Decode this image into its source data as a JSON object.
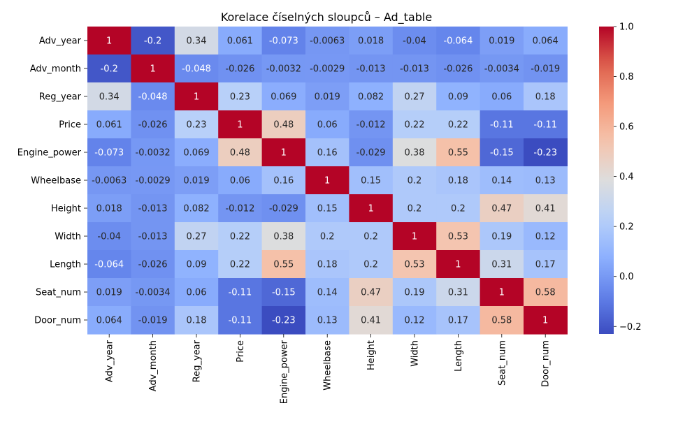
{
  "chart_data": {
    "type": "heatmap",
    "title": "Korelace číselných sloupců – Ad_table",
    "xlabel": "",
    "ylabel": "",
    "rows": [
      "Adv_year",
      "Adv_month",
      "Reg_year",
      "Price",
      "Engine_power",
      "Wheelbase",
      "Height",
      "Width",
      "Length",
      "Seat_num",
      "Door_num"
    ],
    "columns": [
      "Adv_year",
      "Adv_month",
      "Reg_year",
      "Price",
      "Engine_power",
      "Wheelbase",
      "Height",
      "Width",
      "Length",
      "Seat_num",
      "Door_num"
    ],
    "values": [
      [
        1,
        -0.2,
        0.34,
        0.061,
        -0.073,
        -0.0063,
        0.018,
        -0.04,
        -0.064,
        0.019,
        0.064
      ],
      [
        -0.2,
        1,
        -0.048,
        -0.026,
        -0.0032,
        -0.0029,
        -0.013,
        -0.013,
        -0.026,
        -0.0034,
        -0.019
      ],
      [
        0.34,
        -0.048,
        1,
        0.23,
        0.069,
        0.019,
        0.082,
        0.27,
        0.09,
        0.06,
        0.18
      ],
      [
        0.061,
        -0.026,
        0.23,
        1,
        0.48,
        0.06,
        -0.012,
        0.22,
        0.22,
        -0.11,
        -0.11
      ],
      [
        -0.073,
        -0.0032,
        0.069,
        0.48,
        1,
        0.16,
        -0.029,
        0.38,
        0.55,
        -0.15,
        -0.23
      ],
      [
        -0.0063,
        -0.0029,
        0.019,
        0.06,
        0.16,
        1,
        0.15,
        0.2,
        0.18,
        0.14,
        0.13
      ],
      [
        0.018,
        -0.013,
        0.082,
        -0.012,
        -0.029,
        0.15,
        1,
        0.2,
        0.2,
        0.47,
        0.41
      ],
      [
        -0.04,
        -0.013,
        0.27,
        0.22,
        0.38,
        0.2,
        0.2,
        1,
        0.53,
        0.19,
        0.12
      ],
      [
        -0.064,
        -0.026,
        0.09,
        0.22,
        0.55,
        0.18,
        0.2,
        0.53,
        1,
        0.31,
        0.17
      ],
      [
        0.019,
        -0.0034,
        0.06,
        -0.11,
        -0.15,
        0.14,
        0.47,
        0.19,
        0.31,
        1,
        0.58
      ],
      [
        0.064,
        -0.019,
        0.18,
        -0.11,
        -0.23,
        0.13,
        0.41,
        0.12,
        0.17,
        0.58,
        1
      ]
    ],
    "colormap": "coolwarm",
    "vmin": -0.23,
    "vmax": 1,
    "colorbar_ticks": [
      "-0.2",
      "0.0",
      "0.2",
      "0.4",
      "0.6",
      "0.8",
      "1.0"
    ],
    "annotations": true,
    "grid": false,
    "legend": "colorbar-right"
  }
}
